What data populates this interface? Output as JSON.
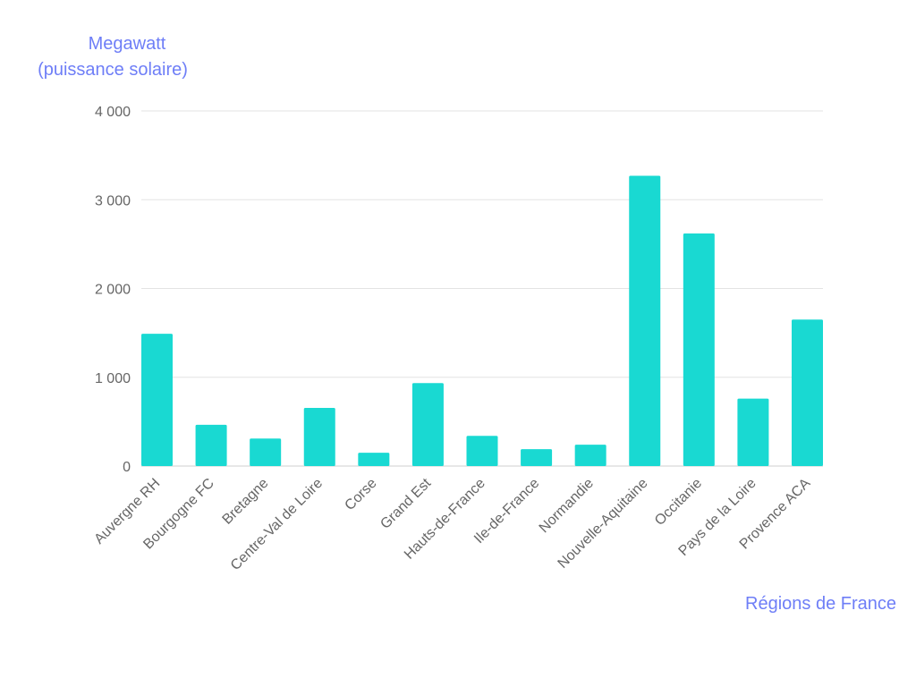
{
  "chart_data": {
    "type": "bar",
    "title": "",
    "ylabel_lines": [
      "Megawatt",
      "(puissance solaire)"
    ],
    "xlabel": "Régions de France",
    "categories": [
      "Auvergne RH",
      "Bourgogne FC",
      "Bretagne",
      "Centre-Val de Loire",
      "Corse",
      "Grand Est",
      "Hauts-de-France",
      "Ile-de-France",
      "Normandie",
      "Nouvelle-Aquitaine",
      "Occitanie",
      "Pays de la Loire",
      "Provence ACA"
    ],
    "values": [
      1490,
      465,
      310,
      655,
      150,
      935,
      340,
      190,
      240,
      3270,
      2620,
      760,
      1650
    ],
    "ylim": [
      0,
      4000
    ],
    "yticks": [
      0,
      1000,
      2000,
      3000,
      4000
    ],
    "ytick_labels": [
      "0",
      "1 000",
      "2 000",
      "3 000",
      "4 000"
    ],
    "grid": true,
    "colors": {
      "bar": "#19d9d2",
      "grid": "#e3e3e3",
      "axis": "#cfcfcf",
      "tick_text": "#666666",
      "label": "#6e7ef7"
    }
  }
}
